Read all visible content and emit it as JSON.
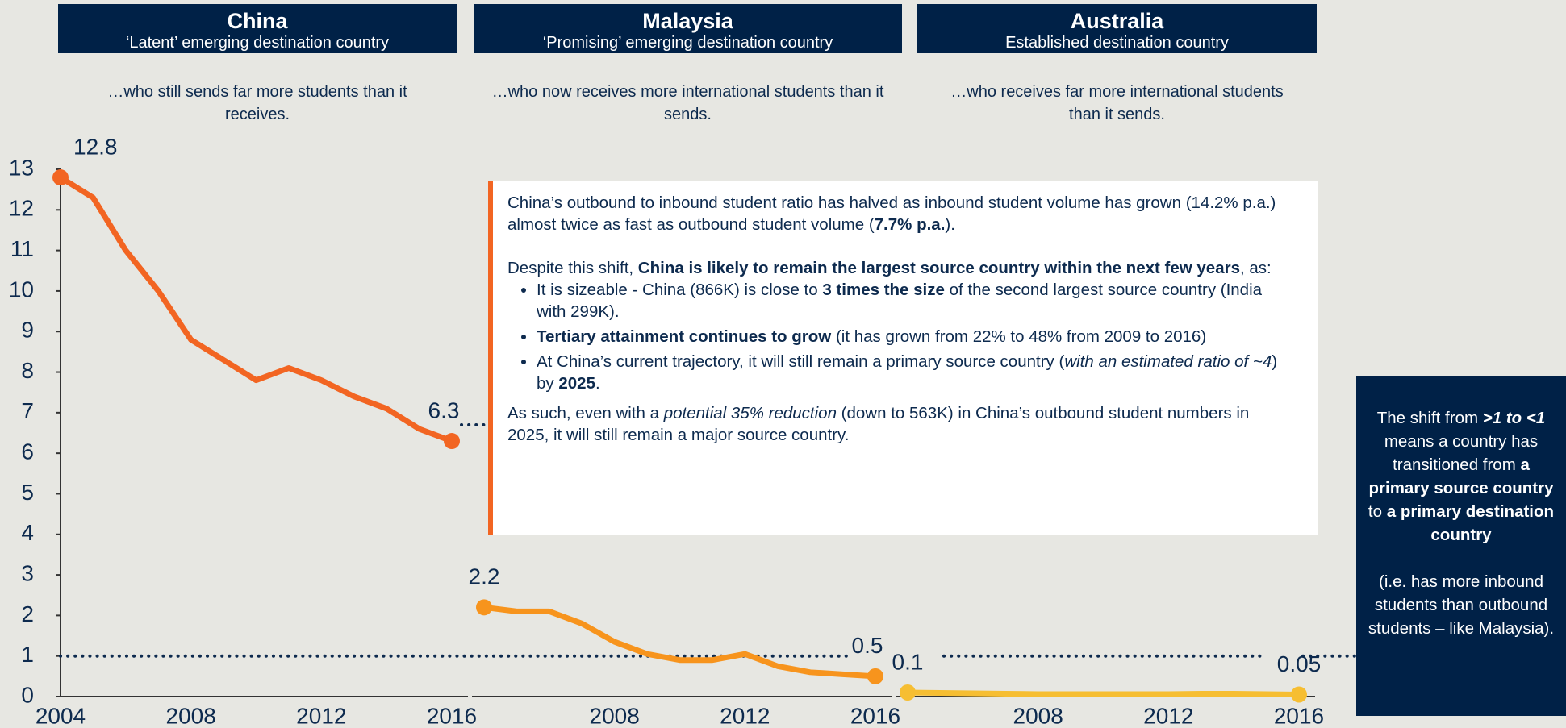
{
  "chart_data": {
    "type": "line",
    "x": [
      2004,
      2005,
      2006,
      2007,
      2008,
      2009,
      2010,
      2011,
      2012,
      2013,
      2014,
      2015,
      2016
    ],
    "xticks": [
      2004,
      2008,
      2012,
      2016
    ],
    "ylim": [
      0,
      13
    ],
    "yticks": [
      0,
      1,
      2,
      3,
      4,
      5,
      6,
      7,
      8,
      9,
      10,
      11,
      12,
      13
    ],
    "reference_line": 1,
    "series": [
      {
        "name": "China",
        "subtitle": "‘Latent’ emerging destination country",
        "description": "…who still sends far more students than it receives.",
        "color": "#f26522",
        "values": [
          12.8,
          12.3,
          11.0,
          10.0,
          8.8,
          8.3,
          7.8,
          8.1,
          7.8,
          7.4,
          7.1,
          6.6,
          6.3
        ]
      },
      {
        "name": "Malaysia",
        "subtitle": "‘Promising’ emerging destination country",
        "description": "…who now receives more international students than it sends.",
        "color": "#f7941d",
        "values": [
          2.2,
          2.1,
          2.1,
          1.8,
          1.35,
          1.05,
          0.9,
          0.9,
          1.05,
          0.75,
          0.6,
          0.55,
          0.5
        ]
      },
      {
        "name": "Australia",
        "subtitle": "Established destination country",
        "description": "…who receives far more international students than it sends.",
        "color": "#f6be32",
        "values": [
          0.1,
          0.09,
          0.08,
          0.07,
          0.06,
          0.06,
          0.06,
          0.06,
          0.06,
          0.07,
          0.07,
          0.06,
          0.05
        ]
      }
    ]
  },
  "textbox": {
    "paragraphs": [
      [
        {
          "text": "China’s outbound to inbound student ratio has halved as inbound student volume has grown (14.2% p.a.) almost twice as fast as outbound student volume ("
        },
        {
          "text": "7.7% p.a.",
          "style": "b"
        },
        {
          "text": ")."
        }
      ],
      [
        {
          "text": "Despite this shift, "
        },
        {
          "text": "China is likely to remain the largest source country within the next few years",
          "style": "b"
        },
        {
          "text": ", as:"
        }
      ]
    ],
    "bullets": [
      [
        {
          "text": "It is sizeable - China (866K) is close to "
        },
        {
          "text": "3 times the size",
          "style": "b"
        },
        {
          "text": " of the second largest source country (India with 299K)."
        }
      ],
      [
        {
          "text": "Tertiary attainment continues to grow",
          "style": "b"
        },
        {
          "text": " (it has grown from 22% to 48% from 2009 to 2016)"
        }
      ],
      [
        {
          "text": "At China’s current trajectory, it will still remain a primary source country ("
        },
        {
          "text": "with an estimated ratio of ~4",
          "style": "i"
        },
        {
          "text": ") by "
        },
        {
          "text": "2025",
          "style": "b"
        },
        {
          "text": "."
        }
      ]
    ],
    "closing": [
      {
        "text": "As such, even with a "
      },
      {
        "text": "potential 35% reduction",
        "style": "i"
      },
      {
        "text": " (down to 563K) in China’s outbound student numbers in 2025, it will still remain a major source country."
      }
    ]
  },
  "sidebar": [
    [
      {
        "text": "The shift from "
      },
      {
        "text": ">1 to <1",
        "style": "bi"
      },
      {
        "text": " means a country has transitioned from "
      },
      {
        "text": "a primary source country",
        "style": "b"
      },
      {
        "text": " to "
      },
      {
        "text": "a primary destination country",
        "style": "b"
      }
    ],
    [
      {
        "text": "(i.e. has more inbound students than outbound students – like Malaysia)."
      }
    ]
  ]
}
